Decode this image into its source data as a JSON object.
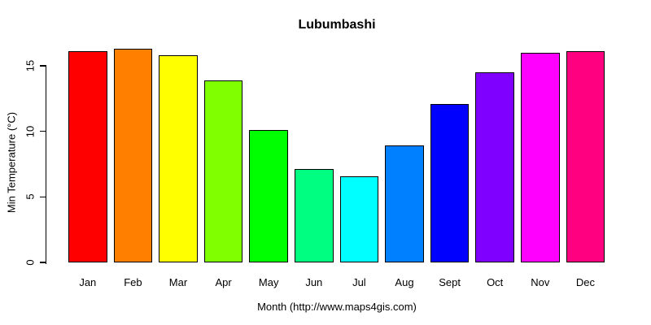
{
  "chart_data": {
    "type": "bar",
    "title": "Lubumbashi",
    "categories": [
      "Jan",
      "Feb",
      "Mar",
      "Apr",
      "May",
      "Jun",
      "Jul",
      "Aug",
      "Sept",
      "Oct",
      "Nov",
      "Dec"
    ],
    "values": [
      16.1,
      16.3,
      15.8,
      13.9,
      10.1,
      7.1,
      6.6,
      8.9,
      12.1,
      14.5,
      16.0,
      16.1
    ],
    "bar_colors": [
      "#FF0000",
      "#FF8000",
      "#FFFF00",
      "#80FF00",
      "#00FF00",
      "#00FF80",
      "#00FFFF",
      "#0080FF",
      "#0000FF",
      "#8000FF",
      "#FF00FF",
      "#FF0080"
    ],
    "bar_border_color": "#000000",
    "xlabel": "Month (http://www.maps4gis.com)",
    "ylabel": "Min Temperature (°C)",
    "ylim": [
      0,
      15
    ],
    "yticks": [
      0,
      5,
      10,
      15
    ],
    "grid": false,
    "legend": "none",
    "background_color": "#FFFFFF"
  }
}
